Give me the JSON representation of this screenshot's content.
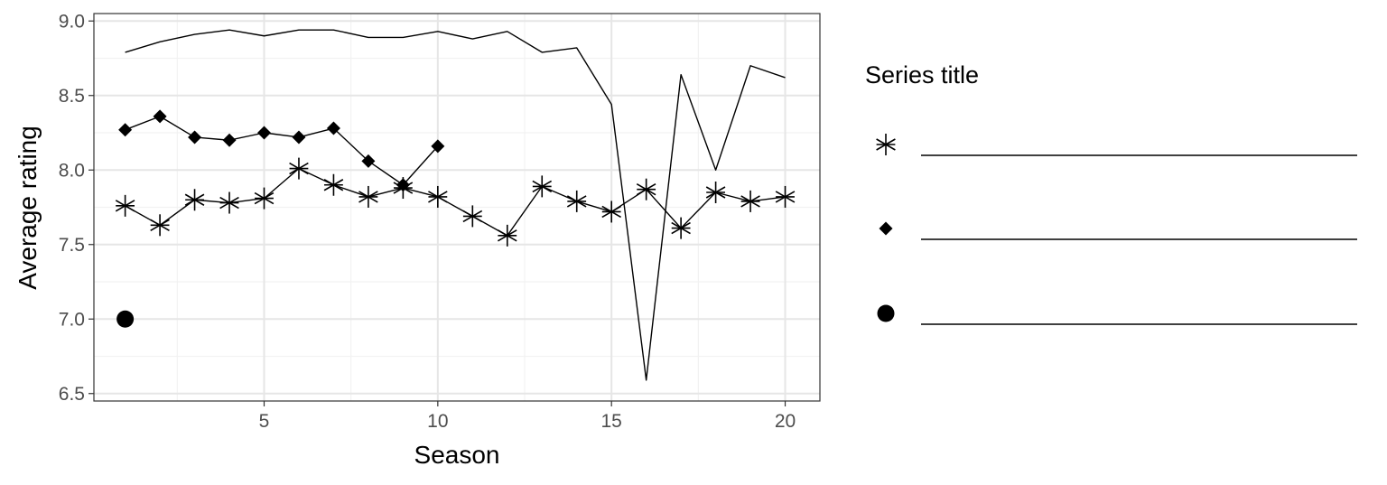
{
  "chart_data": {
    "type": "line",
    "title": "",
    "xlabel": "Season",
    "ylabel": "Average rating",
    "xlim": [
      0.1,
      21.0
    ],
    "ylim": [
      6.45,
      9.05
    ],
    "x_ticks": [
      5,
      10,
      15,
      20
    ],
    "x_tick_labels": [
      "5",
      "10",
      "15",
      "20"
    ],
    "y_ticks": [
      6.5,
      7.0,
      7.5,
      8.0,
      8.5,
      9.0
    ],
    "y_tick_labels": [
      "6.5",
      "7.0",
      "7.5",
      "8.0",
      "8.5",
      "9.0"
    ],
    "grid": true,
    "legend": {
      "title": "Series title",
      "position": "right",
      "entries": [
        {
          "marker": "asterisk",
          "label": ""
        },
        {
          "marker": "diamond",
          "label": ""
        },
        {
          "marker": "circle",
          "label": ""
        }
      ]
    },
    "series": [
      {
        "marker": "none",
        "x": [
          1,
          2,
          3,
          4,
          5,
          6,
          7,
          8,
          9,
          10,
          11,
          12,
          13,
          14,
          15,
          16,
          17,
          18,
          19,
          20
        ],
        "values": [
          8.79,
          8.86,
          8.91,
          8.94,
          8.9,
          8.94,
          8.94,
          8.89,
          8.89,
          8.93,
          8.88,
          8.93,
          8.79,
          8.82,
          8.44,
          6.59,
          8.64,
          8.0,
          8.7,
          8.62
        ]
      },
      {
        "marker": "diamond",
        "x": [
          1,
          2,
          3,
          4,
          5,
          6,
          7,
          8,
          9,
          10
        ],
        "values": [
          8.27,
          8.36,
          8.22,
          8.2,
          8.25,
          8.22,
          8.28,
          8.06,
          7.9,
          8.16
        ]
      },
      {
        "marker": "asterisk",
        "x": [
          1,
          2,
          3,
          4,
          5,
          6,
          7,
          8,
          9,
          10,
          11,
          12,
          13,
          14,
          15,
          16,
          17,
          18,
          19,
          20
        ],
        "values": [
          7.76,
          7.63,
          7.8,
          7.78,
          7.81,
          8.01,
          7.9,
          7.82,
          7.88,
          7.82,
          7.69,
          7.56,
          7.89,
          7.79,
          7.72,
          7.87,
          7.61,
          7.85,
          7.79,
          7.82
        ]
      },
      {
        "marker": "circle",
        "x": [
          1
        ],
        "values": [
          7.0
        ]
      }
    ]
  }
}
